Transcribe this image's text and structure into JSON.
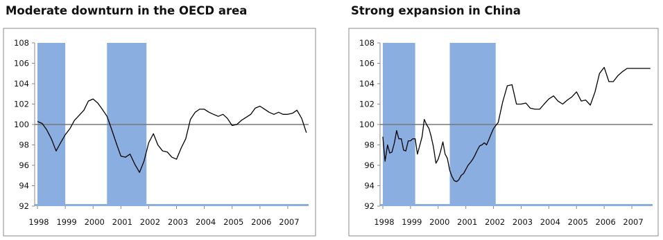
{
  "chart_data": [
    {
      "type": "line",
      "title": "Moderate downturn in the OECD area",
      "xlabel": "",
      "ylabel": "",
      "ylim": [
        92,
        108
      ],
      "yticks": [
        92,
        94,
        96,
        98,
        100,
        102,
        104,
        106,
        108
      ],
      "xlim": [
        1997.9,
        2007.75
      ],
      "xticks": [
        1998,
        1999,
        2000,
        2001,
        2002,
        2003,
        2004,
        2005,
        2006,
        2007
      ],
      "xtick_labels": [
        "1998",
        "1999",
        "2000",
        "2001",
        "2002",
        "2003",
        "2004",
        "2005",
        "2006",
        "2007"
      ],
      "reference_line": 100,
      "shaded_periods": [
        [
          1998.0,
          1999.0
        ],
        [
          2000.5,
          2001.92
        ]
      ],
      "shade_color": "#8aaee0",
      "line_color": "#000000",
      "series": [
        {
          "x": [
            1998.0,
            1998.17,
            1998.33,
            1998.5,
            1998.67,
            1998.83,
            1999.0,
            1999.17,
            1999.33,
            1999.5,
            1999.67,
            1999.83,
            2000.0,
            2000.17,
            2000.33,
            2000.5,
            2000.67,
            2000.83,
            2001.0,
            2001.17,
            2001.33,
            2001.5,
            2001.67,
            2001.83,
            2002.0,
            2002.17,
            2002.33,
            2002.5,
            2002.67,
            2002.83,
            2003.0,
            2003.17,
            2003.33,
            2003.5,
            2003.67,
            2003.83,
            2004.0,
            2004.17,
            2004.33,
            2004.5,
            2004.67,
            2004.83,
            2005.0,
            2005.17,
            2005.33,
            2005.5,
            2005.67,
            2005.83,
            2006.0,
            2006.17,
            2006.33,
            2006.5,
            2006.67,
            2006.83,
            2007.0,
            2007.17,
            2007.33,
            2007.5,
            2007.67
          ],
          "values": [
            100.3,
            100.1,
            99.5,
            98.6,
            97.4,
            98.2,
            99.0,
            99.6,
            100.4,
            100.9,
            101.4,
            102.3,
            102.5,
            102.1,
            101.5,
            100.8,
            99.5,
            98.2,
            96.9,
            96.8,
            97.1,
            96.1,
            95.3,
            96.4,
            98.2,
            99.1,
            98.0,
            97.4,
            97.3,
            96.8,
            96.6,
            97.7,
            98.6,
            100.5,
            101.2,
            101.5,
            101.5,
            101.2,
            101.0,
            100.8,
            101.0,
            100.6,
            99.9,
            100.0,
            100.4,
            100.7,
            101.0,
            101.6,
            101.8,
            101.5,
            101.2,
            101.0,
            101.2,
            101.0,
            101.0,
            101.1,
            101.4,
            100.6,
            99.2
          ]
        }
      ]
    },
    {
      "type": "line",
      "title": "Strong expansion in China",
      "xlabel": "",
      "ylabel": "",
      "ylim": [
        92,
        108
      ],
      "yticks": [
        92,
        94,
        96,
        98,
        100,
        102,
        104,
        106,
        108
      ],
      "xlim": [
        1997.9,
        2007.75
      ],
      "xticks": [
        1998,
        1999,
        2000,
        2001,
        2002,
        2003,
        2004,
        2005,
        2006,
        2007
      ],
      "xtick_labels": [
        "1998",
        "1999",
        "2000",
        "2001",
        "2002",
        "2003",
        "2004",
        "2005",
        "2006",
        "2007"
      ],
      "reference_line": 100,
      "shaded_periods": [
        [
          1998.0,
          1999.17
        ],
        [
          2000.42,
          2002.08
        ]
      ],
      "shade_color": "#8aaee0",
      "line_color": "#000000",
      "series": [
        {
          "x": [
            1998.0,
            1998.08,
            1998.17,
            1998.25,
            1998.33,
            1998.42,
            1998.5,
            1998.58,
            1998.67,
            1998.75,
            1998.83,
            1998.92,
            1999.0,
            1999.08,
            1999.17,
            1999.25,
            1999.33,
            1999.42,
            1999.5,
            1999.58,
            1999.67,
            1999.75,
            1999.83,
            1999.92,
            2000.0,
            2000.08,
            2000.17,
            2000.25,
            2000.33,
            2000.42,
            2000.5,
            2000.58,
            2000.67,
            2000.75,
            2000.83,
            2000.92,
            2001.0,
            2001.08,
            2001.17,
            2001.25,
            2001.33,
            2001.42,
            2001.5,
            2001.58,
            2001.67,
            2001.75,
            2001.83,
            2001.92,
            2002.0,
            2002.17,
            2002.33,
            2002.5,
            2002.67,
            2002.83,
            2003.0,
            2003.17,
            2003.33,
            2003.5,
            2003.67,
            2003.83,
            2004.0,
            2004.17,
            2004.33,
            2004.5,
            2004.67,
            2004.83,
            2005.0,
            2005.17,
            2005.33,
            2005.5,
            2005.67,
            2005.83,
            2006.0,
            2006.17,
            2006.33,
            2006.5,
            2006.67,
            2006.83,
            2007.0,
            2007.17,
            2007.33,
            2007.5,
            2007.67
          ],
          "values": [
            98.8,
            96.4,
            98.0,
            97.2,
            97.3,
            98.2,
            99.4,
            98.6,
            98.6,
            97.5,
            97.4,
            98.4,
            98.4,
            98.6,
            98.6,
            97.1,
            97.9,
            98.8,
            100.5,
            100.0,
            99.6,
            98.8,
            97.8,
            96.2,
            96.6,
            97.3,
            98.3,
            97.1,
            96.7,
            95.5,
            94.9,
            94.5,
            94.4,
            94.6,
            95.0,
            95.2,
            95.6,
            96.0,
            96.3,
            96.6,
            97.0,
            97.5,
            97.9,
            98.0,
            98.2,
            98.0,
            98.5,
            99.1,
            99.6,
            100.2,
            102.2,
            103.8,
            103.9,
            102.0,
            102.0,
            102.1,
            101.6,
            101.5,
            101.5,
            102.0,
            102.5,
            102.8,
            102.3,
            102.0,
            102.4,
            102.7,
            103.2,
            102.3,
            102.4,
            101.9,
            103.2,
            105.0,
            105.6,
            104.2,
            104.2,
            104.8,
            105.2,
            105.5,
            105.5,
            105.5,
            105.5,
            105.5,
            105.5
          ]
        }
      ]
    }
  ]
}
